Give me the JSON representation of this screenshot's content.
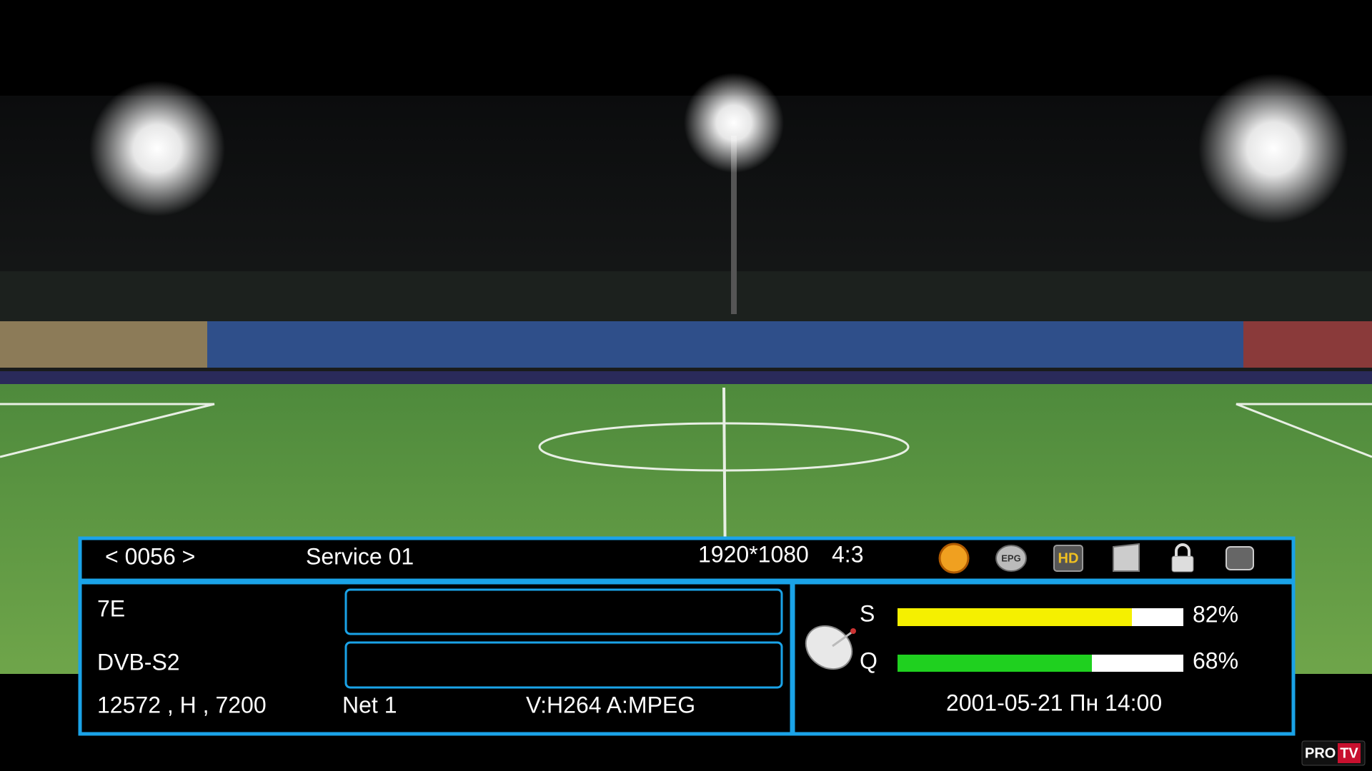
{
  "info_bar": {
    "channel_number": "< 0056 >",
    "service_name": "Service 01",
    "resolution": "1920*1080",
    "aspect": "4:3",
    "icons": [
      "EPG",
      "HD"
    ],
    "satellite": "7E",
    "system": "DVB-S2",
    "transponder": "12572 , H , 7200",
    "network": "Net 1",
    "codecs": "V:H264 A:MPEG",
    "signal": {
      "strength": {
        "label": "S",
        "value": 82,
        "value_label": "82%"
      },
      "quality": {
        "label": "Q",
        "value": 68,
        "value_label": "68%"
      }
    },
    "datetime": "2001-05-21 Пн 14:00"
  },
  "logo": {
    "left": "PRO",
    "right": "TV"
  }
}
